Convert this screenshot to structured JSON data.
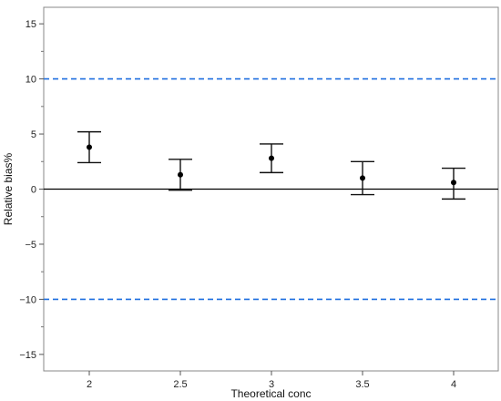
{
  "chart_data": {
    "type": "scatter",
    "title": "",
    "xlabel": "Theoretical conc",
    "ylabel": "Relative bias%",
    "categories": [
      "2",
      "2.5",
      "3",
      "3.5",
      "4"
    ],
    "series": [
      {
        "values": [
          3.8,
          1.3,
          2.8,
          1.0,
          0.6
        ],
        "lower": [
          2.4,
          -0.1,
          1.5,
          -0.5,
          -0.9
        ],
        "upper": [
          5.2,
          2.7,
          4.1,
          2.5,
          1.9
        ]
      }
    ],
    "ylim": [
      -16.5,
      16.5
    ],
    "yticks": [
      -15,
      -10,
      -5,
      0,
      5,
      10,
      15
    ],
    "reference_lines": [
      {
        "y": 10,
        "style": "dashed",
        "color": "#1f6fe0"
      },
      {
        "y": 0,
        "style": "solid",
        "color": "#000000"
      },
      {
        "y": -10,
        "style": "dashed",
        "color": "#1f6fe0"
      }
    ],
    "grid": false,
    "legend": "none"
  }
}
